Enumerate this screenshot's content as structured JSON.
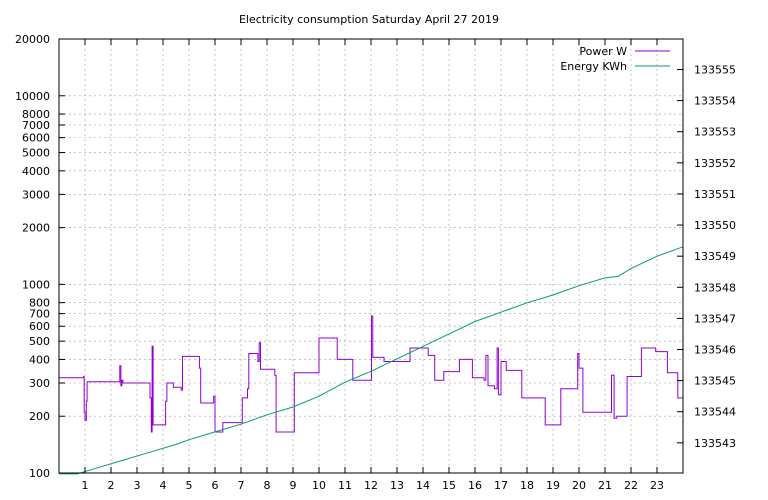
{
  "chart_data": {
    "type": "line",
    "title": "Electricity consumption Saturday April 27 2019",
    "xlabel": "",
    "ylabel": "",
    "y2label": "",
    "grid": true,
    "legend_position": "top-right",
    "x_range": [
      0,
      24
    ],
    "x_ticks": [
      "1",
      "2",
      "3",
      "4",
      "5",
      "6",
      "7",
      "8",
      "9",
      "10",
      "11",
      "12",
      "13",
      "14",
      "15",
      "16",
      "17",
      "18",
      "19",
      "20",
      "21",
      "22",
      "23"
    ],
    "y_scale": "log",
    "y_range": [
      100,
      20000
    ],
    "y_ticks": [
      "100",
      "200",
      "300",
      "400",
      "500",
      "600",
      "700",
      "800",
      "1000",
      "2000",
      "3000",
      "4000",
      "5000",
      "6000",
      "7000",
      "8000",
      "10000",
      "20000"
    ],
    "y2_range": [
      133542.03,
      133555.98
    ],
    "y2_ticks": [
      "133543",
      "133544",
      "133545",
      "133546",
      "133547",
      "133548",
      "133549",
      "133550",
      "133551",
      "133552",
      "133553",
      "133554",
      "133555"
    ],
    "series": [
      {
        "name": "Power W",
        "color": "#9400d3",
        "axis": "left",
        "x": [
          0,
          0.95,
          0.97,
          1.0,
          1.05,
          1.08,
          2.3,
          2.34,
          2.38,
          2.42,
          2.46,
          3.4,
          3.5,
          3.55,
          3.58,
          3.62,
          4.0,
          4.1,
          4.15,
          4.4,
          4.7,
          4.75,
          4.8,
          5.4,
          5.45,
          5.5,
          5.95,
          6.0,
          6.05,
          6.3,
          6.35,
          7.0,
          7.05,
          7.25,
          7.3,
          7.65,
          7.7,
          7.75,
          8.25,
          8.3,
          8.35,
          8.95,
          9.05,
          10.0,
          10.7,
          11.3,
          12.0,
          12.02,
          12.07,
          12.5,
          12.9,
          13.5,
          14.2,
          14.45,
          14.8,
          15.4,
          15.9,
          16.35,
          16.42,
          16.5,
          16.75,
          16.85,
          16.9,
          17.0,
          17.2,
          17.8,
          18.7,
          18.95,
          19.3,
          19.95,
          20.0,
          20.15,
          21.2,
          21.25,
          21.35,
          21.45,
          21.85,
          22.4,
          22.95,
          23.4,
          23.8,
          24.0
        ],
        "y": [
          320,
          325,
          210,
          190,
          240,
          305,
          305,
          370,
          290,
          310,
          300,
          300,
          250,
          165,
          470,
          180,
          180,
          240,
          300,
          285,
          275,
          415,
          415,
          360,
          235,
          235,
          255,
          165,
          165,
          185,
          185,
          185,
          250,
          280,
          430,
          390,
          490,
          355,
          355,
          330,
          165,
          165,
          340,
          520,
          400,
          310,
          310,
          680,
          410,
          390,
          390,
          460,
          420,
          310,
          345,
          400,
          320,
          310,
          420,
          290,
          280,
          460,
          260,
          390,
          350,
          250,
          180,
          180,
          280,
          430,
          360,
          210,
          210,
          330,
          195,
          200,
          325,
          460,
          440,
          340,
          250,
          245
        ]
      },
      {
        "name": "Energy KWh",
        "color": "#009e73",
        "axis": "right",
        "x": [
          0,
          0.7,
          1.5,
          2.5,
          3.5,
          4.5,
          5.0,
          6.0,
          7.0,
          8.0,
          9.0,
          10.0,
          11.0,
          12.0,
          13.0,
          14.0,
          15.0,
          16.0,
          17.0,
          18.0,
          19.0,
          20.0,
          21.0,
          21.5,
          22.0,
          23.0,
          24.0
        ],
        "y": [
          133542,
          133542.0,
          133542.2,
          133542.45,
          133542.7,
          133542.95,
          133543.1,
          133543.35,
          133543.6,
          133543.9,
          133544.15,
          133544.5,
          133544.95,
          133545.3,
          133545.7,
          133546.1,
          133546.5,
          133546.9,
          133547.2,
          133547.5,
          133547.75,
          133548.05,
          133548.3,
          133548.35,
          133548.6,
          133549.0,
          133549.3
        ]
      }
    ]
  }
}
